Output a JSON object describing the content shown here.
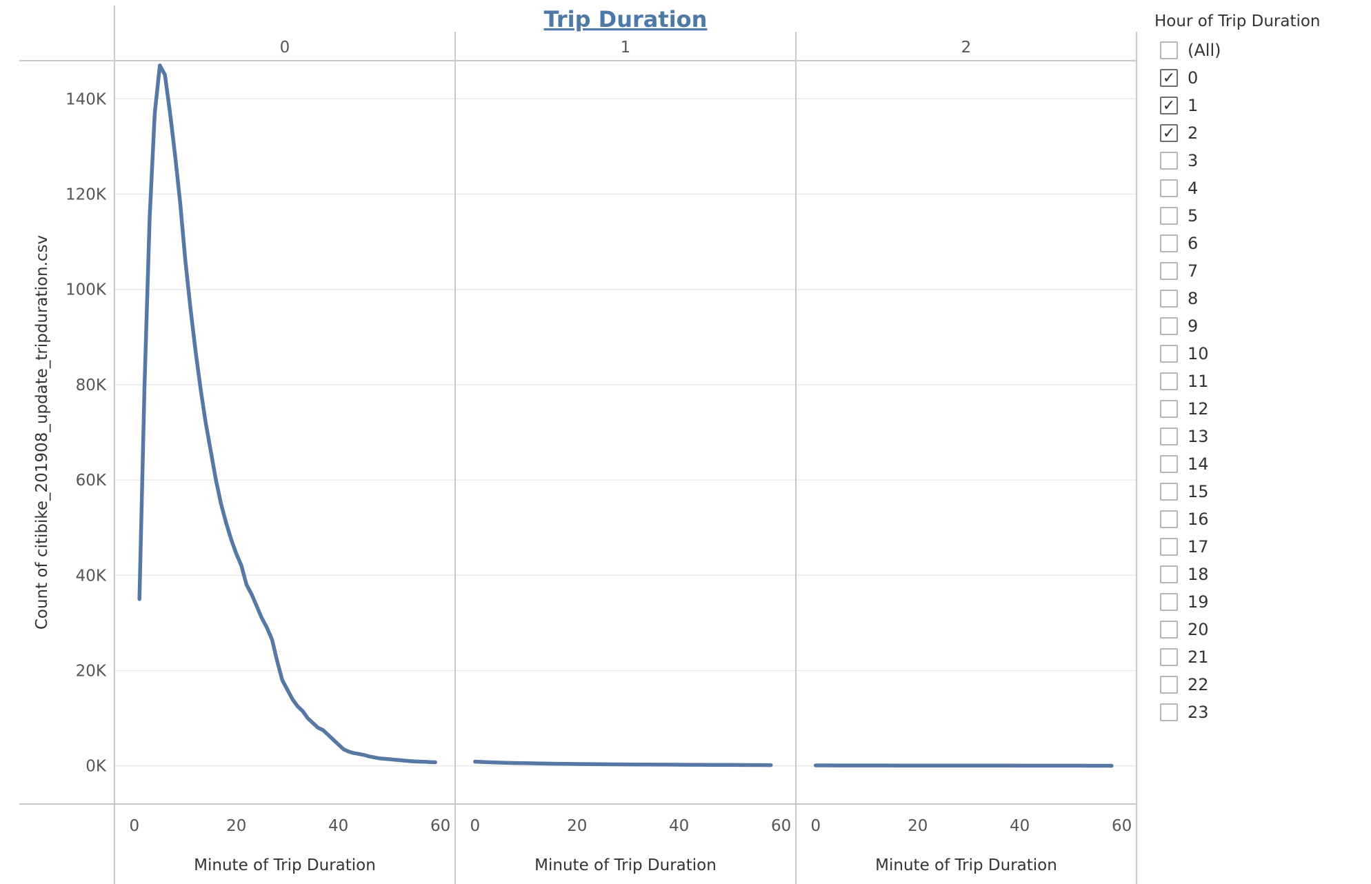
{
  "title": "Trip Duration",
  "colors": {
    "line": "#5778a4",
    "title": "#4e79a7",
    "gridline": "#e9e9e9",
    "divider": "#c8c8c8",
    "text": "#555555"
  },
  "legend": {
    "title": "Hour of Trip Duration",
    "items": [
      {
        "label": "(All)",
        "checked": false
      },
      {
        "label": "0",
        "checked": true
      },
      {
        "label": "1",
        "checked": true
      },
      {
        "label": "2",
        "checked": true
      },
      {
        "label": "3",
        "checked": false
      },
      {
        "label": "4",
        "checked": false
      },
      {
        "label": "5",
        "checked": false
      },
      {
        "label": "6",
        "checked": false
      },
      {
        "label": "7",
        "checked": false
      },
      {
        "label": "8",
        "checked": false
      },
      {
        "label": "9",
        "checked": false
      },
      {
        "label": "10",
        "checked": false
      },
      {
        "label": "11",
        "checked": false
      },
      {
        "label": "12",
        "checked": false
      },
      {
        "label": "13",
        "checked": false
      },
      {
        "label": "14",
        "checked": false
      },
      {
        "label": "15",
        "checked": false
      },
      {
        "label": "16",
        "checked": false
      },
      {
        "label": "17",
        "checked": false
      },
      {
        "label": "18",
        "checked": false
      },
      {
        "label": "19",
        "checked": false
      },
      {
        "label": "20",
        "checked": false
      },
      {
        "label": "21",
        "checked": false
      },
      {
        "label": "22",
        "checked": false
      },
      {
        "label": "23",
        "checked": false
      }
    ]
  },
  "chart_data": {
    "type": "line",
    "title": "Trip Duration",
    "facet_field": "Hour of Trip Duration",
    "ylabel": "Count of citibike_201908_update_tripduration.csv",
    "xlabel": "Minute of Trip Duration",
    "xlim": [
      -2,
      61
    ],
    "ylim": [
      -8000,
      148000
    ],
    "x_ticks": [
      0,
      20,
      40,
      60
    ],
    "y_ticks": [
      0,
      20000,
      40000,
      60000,
      80000,
      100000,
      120000,
      140000
    ],
    "y_tick_labels": [
      "0K",
      "20K",
      "40K",
      "60K",
      "80K",
      "100K",
      "120K",
      "140K"
    ],
    "grid": true,
    "panels": [
      {
        "name": "0",
        "x": [
          1,
          2,
          3,
          4,
          5,
          6,
          7,
          8,
          9,
          10,
          11,
          12,
          13,
          14,
          15,
          16,
          17,
          18,
          19,
          20,
          21,
          22,
          23,
          24,
          25,
          26,
          27,
          28,
          29,
          30,
          31,
          32,
          33,
          34,
          35,
          36,
          37,
          38,
          39,
          40,
          41,
          42,
          43,
          44,
          45,
          46,
          47,
          48,
          49,
          50,
          51,
          52,
          53,
          54,
          55,
          56,
          57,
          58,
          59
        ],
        "y": [
          35000,
          80000,
          115000,
          137000,
          147000,
          145000,
          137000,
          128000,
          118000,
          106000,
          96000,
          87000,
          79000,
          72000,
          66000,
          60000,
          55000,
          51000,
          47500,
          44500,
          42000,
          38000,
          36000,
          33500,
          31000,
          29000,
          26500,
          22000,
          18000,
          16000,
          14000,
          12500,
          11500,
          10000,
          9000,
          8000,
          7500,
          6500,
          5500,
          4500,
          3500,
          3000,
          2700,
          2500,
          2300,
          2000,
          1800,
          1600,
          1500,
          1400,
          1300,
          1200,
          1100,
          1000,
          950,
          900,
          850,
          800,
          750
        ]
      },
      {
        "name": "1",
        "x": [
          0,
          2,
          4,
          6,
          8,
          10,
          12,
          14,
          16,
          18,
          20,
          22,
          24,
          26,
          28,
          30,
          32,
          34,
          36,
          38,
          40,
          42,
          44,
          46,
          48,
          50,
          52,
          54,
          56,
          58
        ],
        "y": [
          900,
          800,
          720,
          650,
          600,
          560,
          520,
          480,
          450,
          420,
          400,
          380,
          360,
          340,
          320,
          300,
          290,
          280,
          270,
          260,
          250,
          240,
          230,
          220,
          210,
          200,
          190,
          180,
          170,
          160
        ]
      },
      {
        "name": "2",
        "x": [
          0,
          2,
          4,
          6,
          8,
          10,
          12,
          14,
          16,
          18,
          20,
          22,
          24,
          26,
          28,
          30,
          32,
          34,
          36,
          38,
          40,
          42,
          44,
          46,
          48,
          50,
          52,
          54,
          56,
          58
        ],
        "y": [
          100,
          100,
          95,
          95,
          90,
          90,
          85,
          85,
          80,
          80,
          75,
          75,
          70,
          70,
          65,
          65,
          60,
          60,
          55,
          55,
          50,
          50,
          45,
          45,
          40,
          40,
          40,
          35,
          35,
          35
        ]
      }
    ]
  }
}
